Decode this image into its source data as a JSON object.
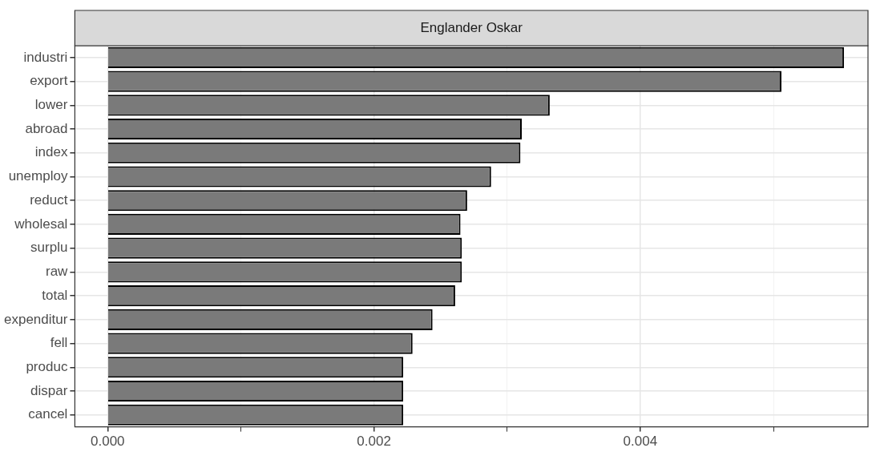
{
  "chart_data": {
    "type": "bar",
    "orientation": "horizontal",
    "title": "Englander Oskar",
    "categories": [
      "industri",
      "export",
      "lower",
      "abroad",
      "index",
      "unemploy",
      "reduct",
      "wholesal",
      "surplu",
      "raw",
      "total",
      "expenditur",
      "fell",
      "produc",
      "dispar",
      "cancel"
    ],
    "values": [
      0.00553,
      0.00506,
      0.00332,
      0.00311,
      0.0031,
      0.00288,
      0.0027,
      0.00265,
      0.00266,
      0.00266,
      0.00261,
      0.00244,
      0.00229,
      0.00222,
      0.00222,
      0.00222
    ],
    "color": "#7a7a7a",
    "xlim": [
      -0.000246,
      0.00571
    ],
    "xticks": [
      {
        "value": 0,
        "label": "0.000"
      },
      {
        "value": 0.001,
        "label": null
      },
      {
        "value": 0.002,
        "label": "0.002"
      },
      {
        "value": 0.003,
        "label": null
      },
      {
        "value": 0.004,
        "label": "0.004"
      },
      {
        "value": 0.005,
        "label": null
      }
    ],
    "grid": true,
    "legend": false
  }
}
